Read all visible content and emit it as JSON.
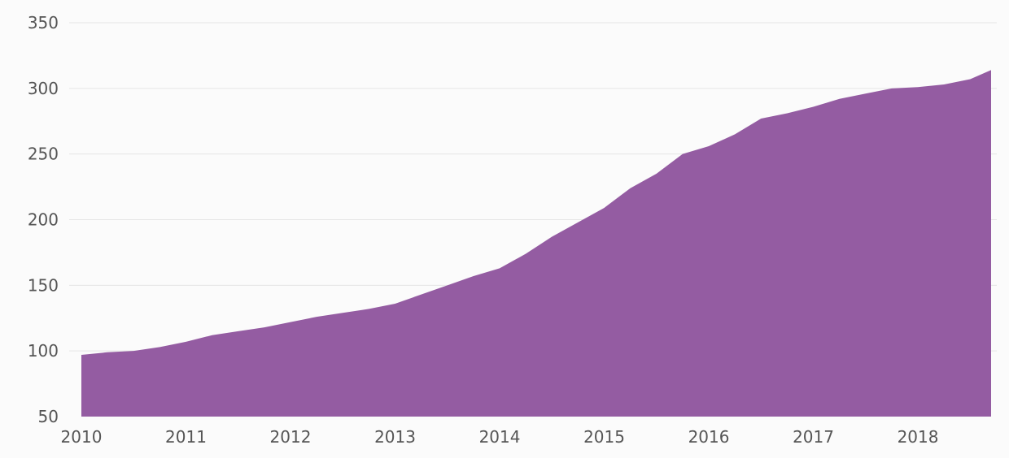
{
  "chart_data": {
    "type": "area",
    "title": "",
    "xlabel": "",
    "ylabel": "",
    "x_ticks": [
      "2010",
      "2011",
      "2012",
      "2013",
      "2014",
      "2015",
      "2016",
      "2017",
      "2018"
    ],
    "y_ticks": [
      50,
      100,
      150,
      200,
      250,
      300,
      350
    ],
    "xlim": [
      2010.0,
      2018.7
    ],
    "ylim": [
      50,
      350
    ],
    "grid": "horizontal",
    "colors": {
      "area_fill": "#945ca2",
      "grid": "#e6e6e6",
      "tick_text": "#555555"
    },
    "series": [
      {
        "x": [
          2010.0,
          2010.25,
          2010.5,
          2010.75,
          2011.0,
          2011.25,
          2011.5,
          2011.75,
          2012.0,
          2012.25,
          2012.5,
          2012.75,
          2013.0,
          2013.25,
          2013.5,
          2013.75,
          2014.0,
          2014.25,
          2014.5,
          2014.75,
          2015.0,
          2015.25,
          2015.5,
          2015.75,
          2016.0,
          2016.25,
          2016.5,
          2016.75,
          2017.0,
          2017.25,
          2017.5,
          2017.75,
          2018.0,
          2018.25,
          2018.5,
          2018.7
        ],
        "values": [
          97,
          99,
          100,
          103,
          107,
          112,
          115,
          118,
          122,
          126,
          129,
          132,
          136,
          143,
          150,
          157,
          163,
          174,
          187,
          198,
          209,
          224,
          235,
          250,
          256,
          265,
          277,
          281,
          286,
          292,
          296,
          300,
          301,
          303,
          307,
          314
        ]
      }
    ]
  }
}
